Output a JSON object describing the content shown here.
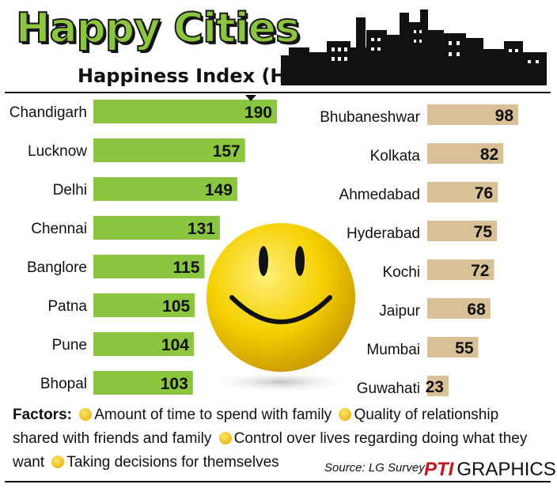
{
  "title": "Happy Cities",
  "subtitle": "Happiness Index (HI)",
  "colors": {
    "left_bar": "#8cc53f",
    "right_bar": "#d8c097",
    "title": "#8cc53f"
  },
  "chart_data": [
    {
      "type": "bar",
      "orientation": "horizontal",
      "categories": [
        "Chandigarh",
        "Lucknow",
        "Delhi",
        "Chennai",
        "Banglore",
        "Patna",
        "Pune",
        "Bhopal"
      ],
      "values": [
        190,
        157,
        149,
        131,
        115,
        105,
        104,
        103
      ]
    },
    {
      "type": "bar",
      "orientation": "horizontal",
      "categories": [
        "Bhubaneshwar",
        "Kolkata",
        "Ahmedabad",
        "Hyderabad",
        "Kochi",
        "Jaipur",
        "Mumbai",
        "Guwahati"
      ],
      "values": [
        98,
        82,
        76,
        75,
        72,
        68,
        55,
        23
      ]
    }
  ],
  "factors": {
    "label": "Factors:",
    "items": [
      "Amount of time to spend with family",
      "Quality of relationship shared with friends and family",
      "Control over lives regarding doing what they want",
      "Taking decisions for themselves"
    ]
  },
  "source": "Source: LG Survey",
  "credit": {
    "logo": "PTI",
    "text": "GRAPHICS"
  }
}
